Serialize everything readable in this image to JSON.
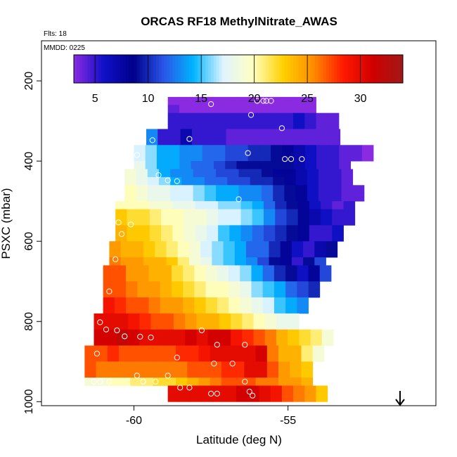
{
  "chart_data": {
    "type": "heatmap",
    "title": "ORCAS RF18 MethylNitrate_AWAS",
    "flts_label": "Flts: 18",
    "mmdd_label": "MMDD: 0225",
    "xlabel": "Latitude (deg N)",
    "ylabel": "PSXC (mbar)",
    "xlim": [
      -63,
      -50.2
    ],
    "ylim": [
      1010,
      100
    ],
    "x_ticks": [
      -60,
      -55
    ],
    "x_tick_labels": [
      "-60",
      "-55"
    ],
    "y_ticks": [
      200,
      400,
      600,
      800,
      1000
    ],
    "y_tick_labels": [
      "200",
      "400",
      "600",
      "800",
      "1000"
    ],
    "colorbar": {
      "range": [
        3,
        34
      ],
      "ticks": [
        5,
        10,
        15,
        20,
        25,
        30
      ],
      "tick_labels": [
        "5",
        "10",
        "15",
        "20",
        "25",
        "30"
      ],
      "stops": [
        "#8a2be2",
        "#1010c8",
        "#00008b",
        "#2a55e8",
        "#00b4ff",
        "#e0f4ff",
        "#ffffc0",
        "#ffd000",
        "#ff8c00",
        "#ff1a00",
        "#d00000",
        "#a01818"
      ]
    },
    "cell_width_deg": 0.37,
    "cell_height_mbar": 20,
    "rows": [
      {
        "p": 250,
        "lat0": -58.9,
        "vals": [
          3,
          3,
          3,
          3,
          3,
          3,
          3,
          3,
          3,
          3,
          3,
          3,
          3
        ]
      },
      {
        "p": 270,
        "lat0": -58.9,
        "vals": [
          4,
          3,
          3,
          3,
          3,
          3,
          3,
          3,
          3,
          3,
          3,
          3,
          3
        ]
      },
      {
        "p": 290,
        "lat0": -58.9,
        "vals": [
          5,
          5,
          5,
          5,
          5,
          5,
          5,
          5,
          5,
          5,
          5,
          6,
          5,
          4,
          4
        ]
      },
      {
        "p": 310,
        "lat0": -58.9,
        "vals": [
          5,
          5,
          5,
          5,
          5,
          5,
          5,
          5,
          5,
          5,
          5,
          6,
          5,
          4,
          4
        ]
      },
      {
        "p": 330,
        "lat0": -59.6,
        "vals": [
          13,
          5,
          5,
          7,
          5,
          5,
          5,
          4,
          4,
          4,
          4,
          4,
          4,
          4,
          4,
          4,
          4
        ]
      },
      {
        "p": 350,
        "lat0": -59.6,
        "vals": [
          13,
          5,
          5,
          7,
          5,
          5,
          5,
          4,
          4,
          4,
          4,
          4,
          4,
          4,
          4,
          4,
          4
        ]
      },
      {
        "p": 370,
        "lat0": -60,
        "vals": [
          17,
          16,
          14,
          14,
          13,
          13,
          12,
          12,
          11,
          11,
          10,
          10,
          9,
          8,
          7,
          6,
          5,
          5,
          4,
          4,
          3
        ]
      },
      {
        "p": 390,
        "lat0": -60,
        "vals": [
          17,
          16,
          14,
          14,
          13,
          13,
          12,
          12,
          11,
          11,
          10,
          10,
          9,
          8,
          7,
          6,
          5,
          5,
          4,
          4,
          3
        ]
      },
      {
        "p": 410,
        "lat0": -60,
        "vals": [
          18,
          16,
          14,
          14,
          13,
          12,
          12,
          11,
          10,
          9,
          9,
          9,
          9,
          9,
          7,
          6,
          5,
          5,
          4
        ]
      },
      {
        "p": 430,
        "lat0": -60.3,
        "vals": [
          19,
          18,
          16,
          14,
          13,
          13,
          12,
          12,
          11,
          11,
          10,
          10,
          9,
          8,
          8,
          7,
          6,
          5,
          5,
          4
        ]
      },
      {
        "p": 450,
        "lat0": -60.3,
        "vals": [
          19,
          18,
          17,
          16,
          14,
          13,
          13,
          12,
          12,
          11,
          11,
          10,
          10,
          9,
          8,
          7,
          6,
          5,
          5,
          4
        ]
      },
      {
        "p": 470,
        "lat0": -60.3,
        "vals": [
          20,
          19,
          18,
          18,
          17,
          17,
          16,
          15,
          14,
          14,
          13,
          13,
          12,
          10,
          9,
          8,
          6,
          5,
          5,
          4,
          4
        ]
      },
      {
        "p": 490,
        "lat0": -60.3,
        "vals": [
          20,
          19,
          18,
          18,
          17,
          17,
          16,
          15,
          14,
          14,
          13,
          13,
          12,
          10,
          9,
          8,
          6,
          5,
          5,
          4,
          4
        ]
      },
      {
        "p": 510,
        "lat0": -60.6,
        "vals": [
          20,
          20,
          20,
          19,
          19,
          18,
          18,
          17,
          17,
          16,
          16,
          15,
          14,
          12,
          10,
          9,
          8,
          6,
          5,
          4,
          5
        ]
      },
      {
        "p": 530,
        "lat0": -60.6,
        "vals": [
          23,
          22,
          22,
          21,
          20,
          20,
          19,
          19,
          18,
          17,
          17,
          16,
          15,
          13,
          11,
          10,
          8,
          7,
          6,
          5,
          5
        ]
      },
      {
        "p": 550,
        "lat0": -60.6,
        "vals": [
          23,
          22,
          22,
          21,
          20,
          20,
          19,
          19,
          18,
          17,
          17,
          16,
          15,
          13,
          11,
          10,
          8,
          7,
          6,
          5,
          5
        ]
      },
      {
        "p": 570,
        "lat0": -60.6,
        "vals": [
          24,
          23,
          23,
          22,
          21,
          20,
          19,
          18,
          17,
          15,
          14,
          13,
          12,
          11,
          10,
          9,
          8,
          5,
          5,
          6
        ]
      },
      {
        "p": 590,
        "lat0": -60.6,
        "vals": [
          24,
          23,
          23,
          22,
          21,
          20,
          19,
          18,
          17,
          15,
          14,
          13,
          12,
          11,
          10,
          9,
          8,
          5,
          5,
          6
        ]
      },
      {
        "p": 610,
        "lat0": -60.8,
        "vals": [
          25,
          24,
          24,
          23,
          22,
          21,
          20,
          19,
          17,
          16,
          15,
          14,
          12,
          12,
          10,
          8,
          6,
          5,
          7,
          9
        ]
      },
      {
        "p": 630,
        "lat0": -60.8,
        "vals": [
          25,
          24,
          24,
          23,
          22,
          21,
          20,
          19,
          17,
          16,
          15,
          14,
          12,
          12,
          10,
          8,
          6,
          5,
          7,
          9
        ]
      },
      {
        "p": 650,
        "lat0": -60.8,
        "vals": [
          26,
          25,
          25,
          24,
          24,
          23,
          21,
          19,
          18,
          16,
          15,
          14,
          13,
          11,
          9,
          8,
          5,
          9,
          11
        ]
      },
      {
        "p": 670,
        "lat0": -61,
        "vals": [
          27,
          27,
          25,
          25,
          24,
          24,
          22,
          21,
          20,
          19,
          18,
          17,
          16,
          14,
          12,
          10,
          9,
          6,
          8,
          11
        ]
      },
      {
        "p": 690,
        "lat0": -61,
        "vals": [
          27,
          27,
          25,
          25,
          24,
          24,
          22,
          21,
          20,
          19,
          18,
          17,
          16,
          14,
          12,
          10,
          9,
          6,
          8,
          11
        ]
      },
      {
        "p": 710,
        "lat0": -61,
        "vals": [
          27,
          27,
          26,
          25,
          25,
          24,
          23,
          22,
          21,
          20,
          20,
          19,
          18,
          16,
          15,
          14,
          12,
          11,
          10
        ]
      },
      {
        "p": 730,
        "lat0": -61,
        "vals": [
          27,
          27,
          26,
          25,
          25,
          24,
          23,
          22,
          21,
          20,
          20,
          19,
          18,
          16,
          15,
          14,
          12,
          11,
          10
        ]
      },
      {
        "p": 750,
        "lat0": -61,
        "vals": [
          29,
          28,
          27,
          27,
          26,
          25,
          25,
          24,
          23,
          22,
          21,
          20,
          19,
          18,
          17,
          15,
          14,
          13
        ]
      },
      {
        "p": 770,
        "lat0": -61,
        "vals": [
          29,
          28,
          27,
          27,
          26,
          25,
          25,
          24,
          23,
          22,
          21,
          20,
          19,
          18,
          17,
          15,
          14,
          13
        ]
      },
      {
        "p": 790,
        "lat0": -61.3,
        "vals": [
          30,
          30,
          30,
          29,
          28,
          27,
          27,
          26,
          25,
          24,
          24,
          23,
          22,
          21,
          20,
          19,
          18,
          18
        ]
      },
      {
        "p": 810,
        "lat0": -61.3,
        "vals": [
          30,
          30,
          30,
          29,
          28,
          27,
          27,
          26,
          25,
          24,
          24,
          23,
          22,
          21,
          20,
          19,
          18,
          18
        ]
      },
      {
        "p": 830,
        "lat0": -61.3,
        "vals": [
          31,
          31,
          32,
          31,
          30,
          30,
          30,
          30,
          31,
          30,
          31,
          31,
          29,
          28,
          27,
          26,
          24,
          23,
          22,
          21,
          19
        ]
      },
      {
        "p": 850,
        "lat0": -61.3,
        "vals": [
          31,
          31,
          32,
          31,
          30,
          30,
          30,
          30,
          31,
          30,
          31,
          31,
          29,
          28,
          27,
          26,
          24,
          23,
          22,
          21,
          19
        ]
      },
      {
        "p": 870,
        "lat0": -61.6,
        "vals": [
          27,
          27,
          28,
          27,
          27,
          27,
          27,
          27,
          28,
          28,
          29,
          30,
          30,
          30,
          30,
          31,
          26,
          24,
          24,
          21,
          19
        ]
      },
      {
        "p": 890,
        "lat0": -61.6,
        "vals": [
          27,
          27,
          28,
          27,
          27,
          27,
          27,
          27,
          28,
          28,
          29,
          30,
          30,
          30,
          30,
          31,
          26,
          24,
          24,
          21,
          19
        ]
      },
      {
        "p": 910,
        "lat0": -61.6,
        "vals": [
          27,
          26,
          26,
          26,
          26,
          26,
          26,
          26,
          26,
          27,
          27,
          27,
          28,
          28,
          30,
          30,
          27,
          25,
          24,
          23
        ]
      },
      {
        "p": 930,
        "lat0": -61.6,
        "vals": [
          27,
          26,
          26,
          26,
          26,
          26,
          26,
          26,
          26,
          27,
          27,
          27,
          28,
          28,
          30,
          30,
          27,
          25,
          24,
          23
        ]
      },
      {
        "p": 950,
        "lat0": -61.6,
        "vals": [
          19,
          19,
          20,
          20,
          21,
          21,
          22,
          22,
          23,
          24,
          25,
          26,
          27,
          27,
          27,
          26,
          26,
          25,
          25,
          24
        ]
      },
      {
        "p": 970,
        "lat0": -58.9,
        "vals": [
          30,
          30,
          30,
          30,
          30,
          30,
          31,
          31,
          30,
          29,
          27,
          26,
          25,
          23
        ]
      },
      {
        "p": 990,
        "lat0": -58.9,
        "vals": [
          30,
          30,
          30,
          30,
          30,
          30,
          31,
          31,
          30,
          29,
          27,
          26,
          25,
          23
        ]
      }
    ],
    "points": [
      [
        -57.5,
        258
      ],
      [
        -56,
        250
      ],
      [
        -55.8,
        250
      ],
      [
        -55.7,
        250
      ],
      [
        -55.55,
        250
      ],
      [
        -56.2,
        285
      ],
      [
        -55.2,
        318
      ],
      [
        -59.75,
        348
      ],
      [
        -59.4,
        348
      ],
      [
        -58.2,
        345
      ],
      [
        -59.9,
        385
      ],
      [
        -56.3,
        380
      ],
      [
        -55.1,
        395
      ],
      [
        -54.9,
        395
      ],
      [
        -54.55,
        395
      ],
      [
        -59.2,
        435
      ],
      [
        -58.9,
        448
      ],
      [
        -58.6,
        450
      ],
      [
        -56.6,
        495
      ],
      [
        -60.5,
        553
      ],
      [
        -60.1,
        558
      ],
      [
        -60.4,
        582
      ],
      [
        -60.6,
        645
      ],
      [
        -60.8,
        725
      ],
      [
        -61.1,
        802
      ],
      [
        -60.9,
        820
      ],
      [
        -60.55,
        822
      ],
      [
        -60.3,
        837
      ],
      [
        -59.8,
        838
      ],
      [
        -59.45,
        840
      ],
      [
        -57.8,
        822
      ],
      [
        -57.3,
        858
      ],
      [
        -56.4,
        858
      ],
      [
        -58.6,
        890
      ],
      [
        -57.4,
        905
      ],
      [
        -56.8,
        905
      ],
      [
        -61.2,
        880
      ],
      [
        -61.3,
        950
      ],
      [
        -61.1,
        950
      ],
      [
        -60.8,
        950
      ],
      [
        -59.9,
        935
      ],
      [
        -59.7,
        950
      ],
      [
        -59.3,
        950
      ],
      [
        -58.9,
        935
      ],
      [
        -58.5,
        965
      ],
      [
        -58.2,
        965
      ],
      [
        -57.5,
        980
      ],
      [
        -57.3,
        980
      ],
      [
        -56.4,
        950
      ],
      [
        -56.25,
        975
      ],
      [
        -56.15,
        985
      ]
    ]
  },
  "icons": {
    "arrow": "down-arrow-icon"
  }
}
